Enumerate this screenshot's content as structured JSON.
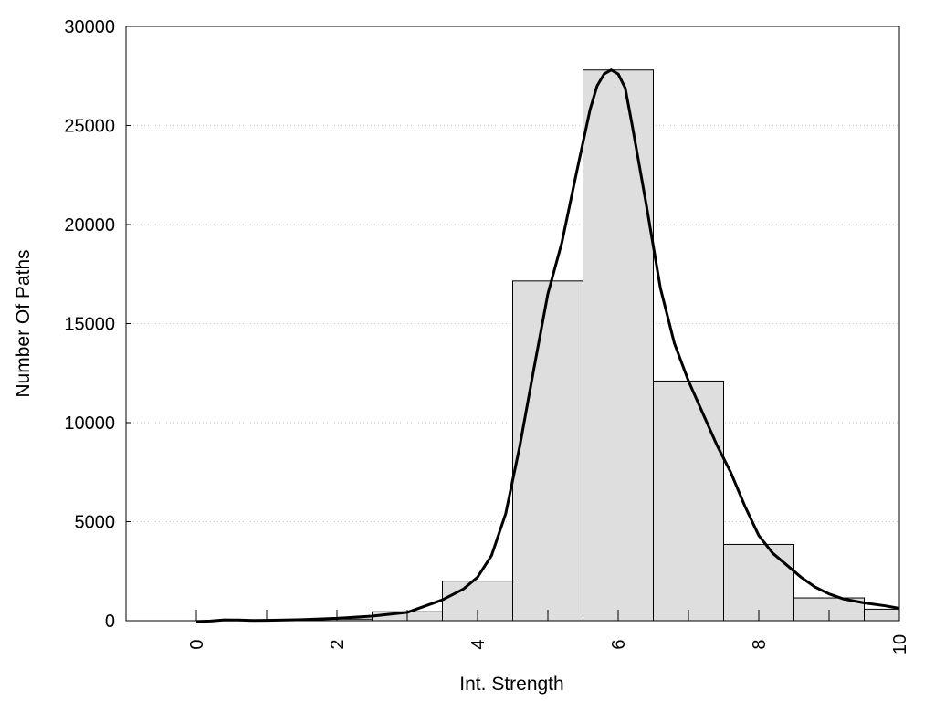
{
  "chart_data": {
    "type": "bar",
    "xlabel": "Int. Strength",
    "ylabel": "Number Of Paths",
    "xlim": [
      -1,
      10
    ],
    "ylim": [
      0,
      30000
    ],
    "x_ticks": [
      0,
      2,
      4,
      6,
      8,
      10
    ],
    "y_ticks": [
      0,
      5000,
      10000,
      15000,
      20000,
      25000,
      30000
    ],
    "grid": "horizontal dotted",
    "bin_width": 1,
    "bars": [
      {
        "x": 1,
        "value": 20
      },
      {
        "x": 2,
        "value": 80
      },
      {
        "x": 3,
        "value": 450
      },
      {
        "x": 4,
        "value": 2000
      },
      {
        "x": 5,
        "value": 17150
      },
      {
        "x": 6,
        "value": 27800
      },
      {
        "x": 7,
        "value": 12100
      },
      {
        "x": 8,
        "value": 3850
      },
      {
        "x": 9,
        "value": 1150
      },
      {
        "x": 10,
        "value": 580
      }
    ],
    "curve": {
      "x": [
        0,
        0.2,
        0.4,
        0.6,
        0.8,
        1.0,
        1.5,
        2.0,
        2.5,
        3.0,
        3.5,
        3.8,
        4.0,
        4.2,
        4.4,
        4.6,
        4.8,
        5.0,
        5.2,
        5.4,
        5.6,
        5.7,
        5.8,
        5.9,
        6.0,
        6.1,
        6.2,
        6.4,
        6.6,
        6.8,
        7.0,
        7.2,
        7.4,
        7.6,
        7.8,
        8.0,
        8.2,
        8.4,
        8.6,
        8.8,
        9.0,
        9.2,
        9.5,
        9.8,
        10.0
      ],
      "y": [
        -40,
        -20,
        40,
        30,
        10,
        20,
        50,
        120,
        230,
        420,
        1050,
        1600,
        2200,
        3300,
        5400,
        8800,
        12700,
        16500,
        19100,
        22500,
        25800,
        27000,
        27600,
        27800,
        27600,
        26900,
        25000,
        21000,
        16800,
        14000,
        12100,
        10500,
        8900,
        7500,
        5800,
        4300,
        3400,
        2800,
        2200,
        1700,
        1350,
        1100,
        900,
        750,
        620
      ]
    },
    "colors": {
      "bar_fill": "#dedede",
      "bar_stroke": "#000000",
      "curve": "#000000",
      "grid": "#c8c8c8"
    }
  }
}
